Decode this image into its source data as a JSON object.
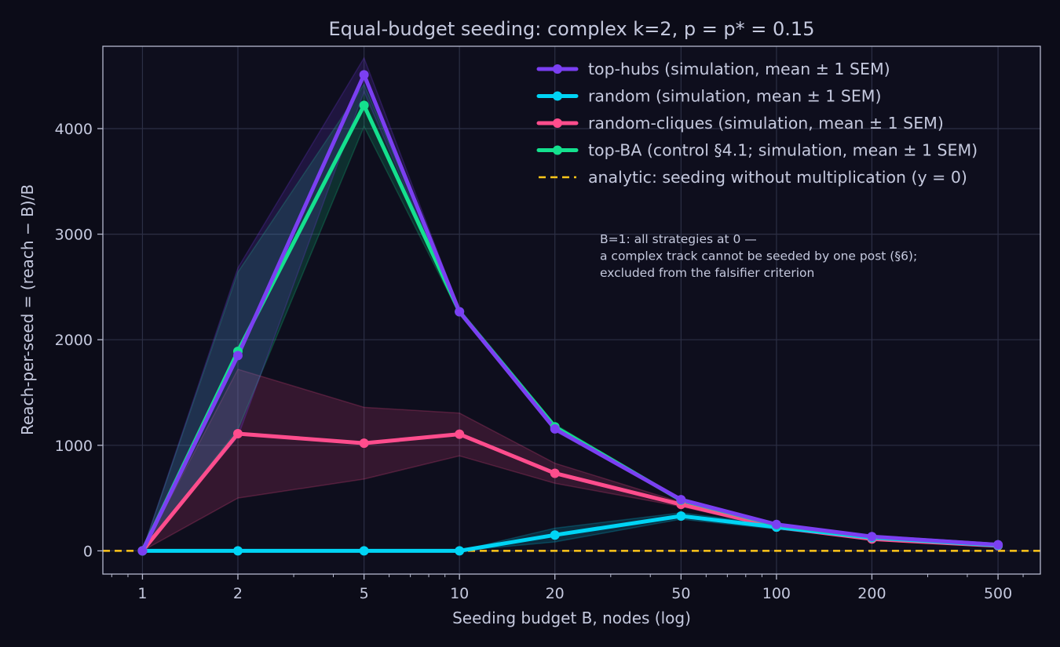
{
  "chart_data": {
    "type": "line",
    "title": "Equal-budget seeding: complex k=2, p = p* = 0.15",
    "xlabel": "Seeding budget B, nodes (log)",
    "ylabel": "Reach-per-seed = (reach − B)/B",
    "x_scale": "log",
    "xlim": [
      0.75,
      680
    ],
    "ylim": [
      -220,
      4780
    ],
    "x_ticks": [
      1,
      2,
      5,
      10,
      20,
      50,
      100,
      200,
      500
    ],
    "x_tick_labels": [
      "1",
      "2",
      "5",
      "10",
      "20",
      "50",
      "100",
      "200",
      "500"
    ],
    "y_ticks": [
      0,
      1000,
      2000,
      3000,
      4000
    ],
    "y_tick_labels": [
      "0",
      "1000",
      "2000",
      "3000",
      "4000"
    ],
    "grid": true,
    "legend_position": "top-right",
    "x": [
      1,
      2,
      5,
      10,
      20,
      50,
      100,
      200,
      500
    ],
    "series": [
      {
        "name": "random-cliques (simulation, mean ± 1 SEM)",
        "color": "#ff4d8d",
        "values": [
          0,
          1110,
          1020,
          1105,
          735,
          440,
          225,
          112,
          48
        ],
        "lower": [
          0,
          500,
          680,
          900,
          640,
          420,
          215,
          105,
          44
        ],
        "upper": [
          0,
          1720,
          1360,
          1305,
          830,
          460,
          235,
          119,
          52
        ]
      },
      {
        "name": "random (simulation, mean ± 1 SEM)",
        "color": "#00d4f5",
        "values": [
          0,
          0,
          0,
          0,
          150,
          330,
          225,
          125,
          52
        ],
        "lower": [
          0,
          0,
          0,
          0,
          85,
          300,
          205,
          115,
          46
        ],
        "upper": [
          0,
          0,
          0,
          0,
          215,
          360,
          245,
          135,
          58
        ]
      },
      {
        "name": "top-BA (control §4.1; simulation, mean ± 1 SEM)",
        "color": "#14e08e",
        "values": [
          0,
          1890,
          4220,
          2265,
          1175,
          480,
          245,
          132,
          57
        ],
        "lower": [
          0,
          1150,
          4020,
          2240,
          1150,
          470,
          240,
          129,
          55
        ],
        "upper": [
          0,
          2640,
          4420,
          2290,
          1200,
          490,
          250,
          135,
          59
        ]
      },
      {
        "name": "top-hubs (simulation, mean ± 1 SEM)",
        "color": "#7b3ff2",
        "values": [
          0,
          1850,
          4510,
          2265,
          1155,
          485,
          250,
          135,
          58
        ],
        "lower": [
          0,
          1080,
          4350,
          2245,
          1135,
          475,
          245,
          132,
          56
        ],
        "upper": [
          0,
          2680,
          4670,
          2285,
          1175,
          495,
          255,
          138,
          60
        ]
      }
    ],
    "reference_line": {
      "name": "analytic: seeding without multiplication (y = 0)",
      "y": 0,
      "color": "#ffc61a",
      "style": "dashed"
    },
    "legend_order": [
      "top-hubs (simulation, mean ± 1 SEM)",
      "random (simulation, mean ± 1 SEM)",
      "random-cliques (simulation, mean ± 1 SEM)",
      "top-BA (control §4.1; simulation, mean ± 1 SEM)",
      "analytic: seeding without multiplication (y = 0)"
    ],
    "annotation": [
      "B=1: all strategies at 0 —",
      "a complex track cannot be seeded by one post (§6);",
      "excluded from the falsifier criterion"
    ]
  }
}
